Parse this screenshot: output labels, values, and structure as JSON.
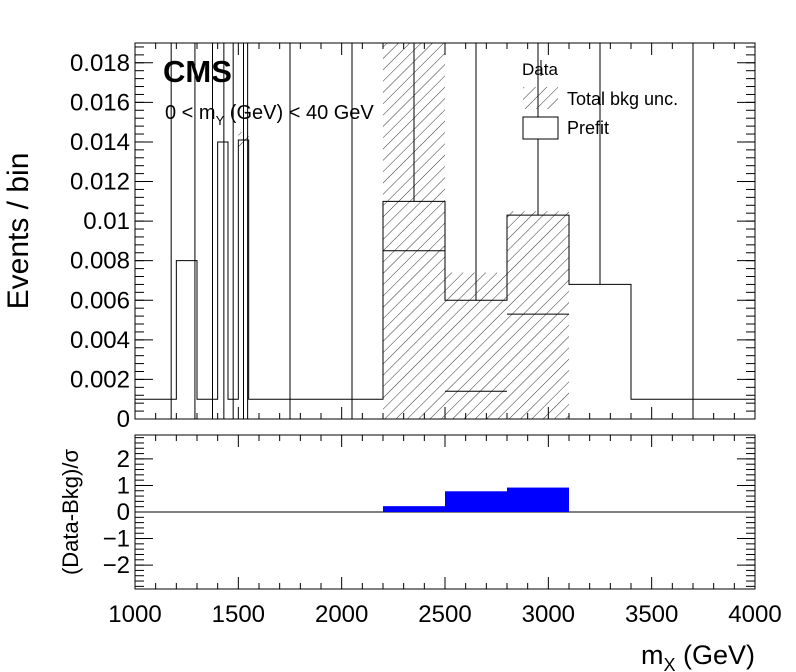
{
  "chart_data": [
    {
      "type": "histogram",
      "panel": "main",
      "label": "CMS",
      "selection": "0 < m_Y (GeV) < 40 GeV",
      "selection_parts": {
        "pre": "0 < m",
        "sub": "Y",
        "post": " (GeV) < 40 GeV"
      },
      "ylabel": "Events / bin",
      "ylim": [
        0,
        0.019
      ],
      "yticks": [
        "0",
        "0.002",
        "0.004",
        "0.006",
        "0.008",
        "0.01",
        "0.012",
        "0.014",
        "0.016",
        "0.018"
      ],
      "ytick_values": [
        0,
        0.002,
        0.004,
        0.006,
        0.008,
        0.01,
        0.012,
        0.014,
        0.016,
        0.018
      ],
      "xlim": [
        1000,
        4000
      ],
      "legend": {
        "placement": "top-right",
        "entries": [
          {
            "name": "Data",
            "style": "marker"
          },
          {
            "name": "Total bkg unc.",
            "style": "hatch"
          },
          {
            "name": "Prefit",
            "style": "outline"
          }
        ]
      },
      "prefit_bins": [
        {
          "x0": 1000,
          "x1": 1200,
          "y": 0.001
        },
        {
          "x0": 1200,
          "x1": 1300,
          "y": 0.008
        },
        {
          "x0": 1300,
          "x1": 1400,
          "y": 0.001
        },
        {
          "x0": 1400,
          "x1": 1450,
          "y": 0.014
        },
        {
          "x0": 1450,
          "x1": 1500,
          "y": 0.001
        },
        {
          "x0": 1500,
          "x1": 1550,
          "y": 0.0141
        },
        {
          "x0": 1550,
          "x1": 2200,
          "y": 0.001
        },
        {
          "x0": 2200,
          "x1": 2500,
          "y": 0.011
        },
        {
          "x0": 2500,
          "x1": 2800,
          "y": 0.006
        },
        {
          "x0": 2800,
          "x1": 3100,
          "y": 0.0103
        },
        {
          "x0": 3100,
          "x1": 3400,
          "y": 0.0068
        },
        {
          "x0": 3400,
          "x1": 4000,
          "y": 0.001
        }
      ],
      "background_unc_bands": [
        {
          "x0": 1500,
          "x1": 1550,
          "low": 0.0137,
          "high": 0.0145
        },
        {
          "x0": 2200,
          "x1": 2500,
          "low": 0.0,
          "high": 0.019
        },
        {
          "x0": 2500,
          "x1": 2800,
          "low": 0.0,
          "high": 0.0074
        },
        {
          "x0": 2800,
          "x1": 3100,
          "low": 0.0,
          "high": 0.0105
        }
      ],
      "postfit_inner_lines": [
        {
          "x0": 2200,
          "x1": 2500,
          "y": 0.0085
        },
        {
          "x0": 2500,
          "x1": 2800,
          "y": 0.0014
        },
        {
          "x0": 2800,
          "x1": 3100,
          "y": 0.0053
        }
      ],
      "data_error_bars": [
        {
          "x": 1175,
          "low": 0.0,
          "high": 0.019
        },
        {
          "x": 1290,
          "low": 0.0,
          "high": 0.019
        },
        {
          "x": 1375,
          "low": 0.0,
          "high": 0.019
        },
        {
          "x": 1430,
          "low": 0.0,
          "high": 0.019
        },
        {
          "x": 1475,
          "low": 0.0,
          "high": 0.019
        },
        {
          "x": 1525,
          "low": 0.0,
          "high": 0.019
        },
        {
          "x": 1545,
          "low": 0.0,
          "high": 0.019
        },
        {
          "x": 1750,
          "low": 0.0,
          "high": 0.019
        },
        {
          "x": 2050,
          "low": 0.0,
          "high": 0.019
        },
        {
          "x": 2350,
          "low": 0.011,
          "high": 0.019
        },
        {
          "x": 2650,
          "low": 0.006,
          "high": 0.019
        },
        {
          "x": 2950,
          "low": 0.0103,
          "high": 0.019
        },
        {
          "x": 3250,
          "low": 0.0068,
          "high": 0.019
        },
        {
          "x": 3700,
          "low": 0.0,
          "high": 0.019
        }
      ]
    },
    {
      "type": "bar",
      "panel": "ratio",
      "ylabel": "(Data-Bkg)/σ",
      "ylim": [
        -2.9,
        2.9
      ],
      "yticks": [
        "−2",
        "−1",
        "0",
        "1",
        "2"
      ],
      "ytick_values": [
        -2,
        -1,
        0,
        1,
        2
      ],
      "xlim": [
        1000,
        4000
      ],
      "xlabel": "m_X (GeV)",
      "xlabel_parts": {
        "pre": "m",
        "sub": "X",
        "post": " (GeV)"
      },
      "xticks": [
        "1000",
        "1500",
        "2000",
        "2500",
        "3000",
        "3500",
        "4000"
      ],
      "xtick_values": [
        1000,
        1500,
        2000,
        2500,
        3000,
        3500,
        4000
      ],
      "color": "#0000ff",
      "bins": [
        {
          "x0": 2200,
          "x1": 2500,
          "value": 0.22
        },
        {
          "x0": 2500,
          "x1": 2800,
          "value": 0.78
        },
        {
          "x0": 2800,
          "x1": 3100,
          "value": 0.92
        }
      ]
    }
  ]
}
